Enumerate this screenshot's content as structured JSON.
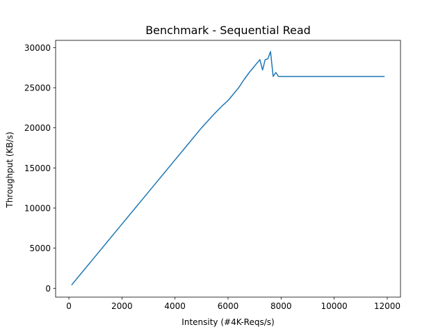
{
  "chart_data": {
    "type": "line",
    "title": "Benchmark - Sequential Read",
    "xlabel": "Intensity (#4K-Reqs/s)",
    "ylabel": "Throughput (KB/s)",
    "xlim": [
      -500,
      12500
    ],
    "ylim": [
      -1100,
      30900
    ],
    "xticks": [
      0,
      2000,
      4000,
      6000,
      8000,
      10000,
      12000
    ],
    "yticks": [
      0,
      5000,
      10000,
      15000,
      20000,
      25000,
      30000
    ],
    "grid": false,
    "line_color": "#1f77b4",
    "series": [
      {
        "x": [
          100,
          500,
          1000,
          1500,
          2000,
          2500,
          3000,
          3500,
          4000,
          4500,
          5000,
          5500,
          5800,
          6000,
          6200,
          6400,
          6600,
          6800,
          7000,
          7200,
          7300,
          7400,
          7500,
          7600,
          7700,
          7800,
          7900,
          8000,
          9000,
          10000,
          11000,
          11900
        ],
        "y": [
          400,
          2000,
          4000,
          6000,
          8000,
          10000,
          12000,
          14000,
          16000,
          18000,
          20000,
          21800,
          22800,
          23400,
          24200,
          25000,
          26000,
          26900,
          27700,
          28500,
          27200,
          28500,
          28600,
          29500,
          26400,
          26900,
          26400,
          26400,
          26400,
          26400,
          26400,
          26400
        ]
      }
    ]
  }
}
